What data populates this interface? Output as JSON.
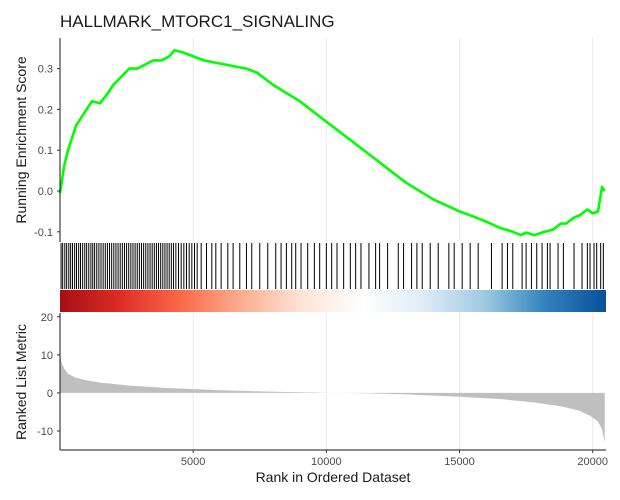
{
  "chart_data": {
    "type": "line",
    "title": "HALLMARK_MTORC1_SIGNALING",
    "xlabel": "Rank in Ordered Dataset",
    "xlim": [
      0,
      20500
    ],
    "x_ticks": [
      5000,
      10000,
      15000,
      20000
    ],
    "running_score": {
      "ylabel": "Running Enrichment Score",
      "ylim": [
        -0.125,
        0.375
      ],
      "y_ticks": [
        -0.1,
        0.0,
        0.1,
        0.2,
        0.3
      ],
      "color": "#00ff00",
      "x": [
        0,
        60,
        150,
        300,
        450,
        600,
        800,
        1000,
        1200,
        1500,
        1800,
        2000,
        2300,
        2600,
        2900,
        3200,
        3500,
        3800,
        4100,
        4300,
        4600,
        5000,
        5400,
        5800,
        6200,
        6600,
        7000,
        7400,
        7700,
        8000,
        9000,
        10000,
        11000,
        12000,
        13000,
        14000,
        15000,
        15500,
        16000,
        16500,
        17000,
        17300,
        17500,
        17800,
        18200,
        18500,
        18800,
        19000,
        19300,
        19500,
        19800,
        20000,
        20200,
        20350,
        20450
      ],
      "values": [
        -0.005,
        0.02,
        0.06,
        0.1,
        0.13,
        0.16,
        0.18,
        0.2,
        0.22,
        0.215,
        0.24,
        0.26,
        0.28,
        0.3,
        0.3,
        0.31,
        0.32,
        0.32,
        0.33,
        0.345,
        0.34,
        0.33,
        0.32,
        0.315,
        0.31,
        0.305,
        0.3,
        0.29,
        0.275,
        0.26,
        0.22,
        0.17,
        0.12,
        0.07,
        0.02,
        -0.02,
        -0.05,
        -0.062,
        -0.075,
        -0.09,
        -0.1,
        -0.108,
        -0.102,
        -0.108,
        -0.1,
        -0.095,
        -0.08,
        -0.08,
        -0.065,
        -0.06,
        -0.045,
        -0.055,
        -0.05,
        0.01,
        0.0
      ]
    },
    "hits": {
      "ranks": [
        40,
        100,
        180,
        250,
        330,
        400,
        470,
        550,
        620,
        700,
        770,
        850,
        930,
        1000,
        1080,
        1160,
        1230,
        1300,
        1380,
        1460,
        1540,
        1620,
        1700,
        1780,
        1860,
        1940,
        2020,
        2100,
        2180,
        2260,
        2340,
        2420,
        2500,
        2580,
        2660,
        2740,
        2820,
        2900,
        2980,
        3060,
        3140,
        3220,
        3300,
        3380,
        3460,
        3540,
        3620,
        3700,
        3780,
        3860,
        3940,
        4020,
        4100,
        4180,
        4260,
        4350,
        4450,
        4550,
        4650,
        4750,
        4850,
        4950,
        5050,
        5150,
        5300,
        5500,
        5700,
        5850,
        6050,
        6300,
        6500,
        6750,
        7000,
        7200,
        7500,
        7800,
        8100,
        8300,
        8500,
        8700,
        8850,
        9050,
        9300,
        9550,
        9750,
        10000,
        10200,
        10400,
        10650,
        10900,
        11100,
        11300,
        11600,
        11850,
        12000,
        12300,
        12700,
        12900,
        13200,
        13400,
        13600,
        13900,
        14200,
        14600,
        14800,
        15100,
        15400,
        15700,
        16200,
        16600,
        16800,
        17000,
        17350,
        17500,
        17700,
        17900,
        18100,
        18300,
        18400,
        18700,
        18900,
        19300,
        19600,
        19800,
        19900,
        20050,
        20150,
        20300,
        20400
      ]
    },
    "rank_color_gradient": [
      "#a50f15",
      "#de2d26",
      "#fb6a4a",
      "#fcae91",
      "#fee5d9",
      "#ffffff",
      "#deebf7",
      "#9ecae1",
      "#3182bd",
      "#08519c"
    ],
    "ranked_metric": {
      "ylabel": "Ranked List Metric",
      "ylim": [
        -15,
        21
      ],
      "y_ticks": [
        -10,
        0,
        10,
        20
      ],
      "fill_color": "#bfbfbf",
      "x": [
        0,
        50,
        150,
        300,
        600,
        1000,
        1500,
        2500,
        4000,
        6000,
        8000,
        10000,
        11500,
        13000,
        15000,
        16500,
        17800,
        18800,
        19500,
        19900,
        20200,
        20350,
        20450
      ],
      "values": [
        10.5,
        8.2,
        6.5,
        5.0,
        4.0,
        3.3,
        2.7,
        2.0,
        1.3,
        0.7,
        0.3,
        0.05,
        -0.1,
        -0.4,
        -1.0,
        -1.6,
        -2.5,
        -3.5,
        -4.7,
        -6.0,
        -7.5,
        -9.5,
        -13.0
      ]
    }
  }
}
